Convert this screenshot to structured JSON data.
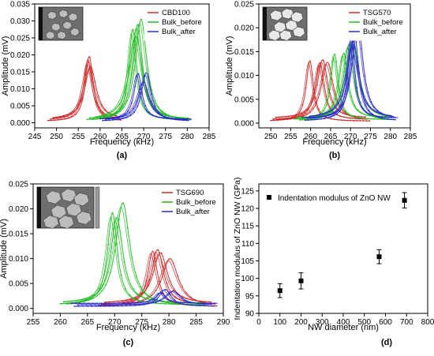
{
  "chart_data": [
    {
      "type": "line",
      "panel_label": "(a)",
      "xlabel": "Frequency (kHz)",
      "ylabel": "Amplitude (mV)",
      "xlim": [
        245,
        285
      ],
      "ylim": [
        -0.0015,
        0.035
      ],
      "xticks": [
        "245",
        "250",
        "255",
        "260",
        "265",
        "270",
        "275",
        "280",
        "285"
      ],
      "yticks": [
        "0.000",
        "0.005",
        "0.010",
        "0.015",
        "0.020",
        "0.025",
        "0.030",
        "0.035"
      ],
      "legend_position": "top-right",
      "inset_image": "SEM micrograph (top view of nanowires)",
      "series": [
        {
          "name": "CBD100",
          "color": "#cc2a2a",
          "peaks": [
            [
              257.5,
              0.0195
            ],
            [
              257.3,
              0.018
            ],
            [
              257.8,
              0.0165
            ]
          ],
          "x_range": [
            248,
            265
          ]
        },
        {
          "name": "Bulk_before",
          "color": "#22bb22",
          "peaks": [
            [
              267.5,
              0.0275
            ],
            [
              268.6,
              0.029
            ],
            [
              269.4,
              0.0305
            ],
            [
              268.2,
              0.0255
            ]
          ],
          "x_range": [
            257,
            281
          ]
        },
        {
          "name": "Bulk_after",
          "color": "#2a2acc",
          "peaks": [
            [
              268.7,
              0.0145
            ],
            [
              270.6,
              0.0148
            ],
            [
              270.0,
              0.012
            ]
          ],
          "x_range": [
            260,
            281
          ]
        }
      ]
    },
    {
      "type": "line",
      "panel_label": "(b)",
      "xlabel": "Frequency (kHz)",
      "ylabel": "Amplitude (mV)",
      "xlim": [
        247,
        285
      ],
      "ylim": [
        -0.001,
        0.025
      ],
      "xticks": [
        "250",
        "255",
        "260",
        "265",
        "270",
        "275",
        "280",
        "285"
      ],
      "yticks": [
        "0.000",
        "0.005",
        "0.010",
        "0.015",
        "0.020",
        "0.025"
      ],
      "legend_position": "top-right",
      "inset_image": "SEM micrograph (faceted nanowire tops)",
      "series": [
        {
          "name": "TSG570",
          "color": "#cc2a2a",
          "peaks": [
            [
              259.8,
              0.0131
            ],
            [
              262.3,
              0.0127
            ],
            [
              263.0,
              0.0133
            ],
            [
              264.2,
              0.0128
            ]
          ],
          "x_range": [
            250,
            275
          ]
        },
        {
          "name": "Bulk_before",
          "color": "#22bb22",
          "peaks": [
            [
              266.0,
              0.0145
            ],
            [
              268.3,
              0.0147
            ],
            [
              269.6,
              0.0165
            ],
            [
              270.6,
              0.0175
            ]
          ],
          "x_range": [
            256,
            281
          ]
        },
        {
          "name": "Bulk_after",
          "color": "#2a2acc",
          "peaks": [
            [
              270.2,
              0.0178
            ],
            [
              271.0,
              0.0185
            ],
            [
              271.8,
              0.0215
            ],
            [
              270.6,
              0.0165
            ]
          ],
          "x_range": [
            258,
            282
          ]
        }
      ]
    },
    {
      "type": "line",
      "panel_label": "(c)",
      "xlabel": "Frequency (kHz)",
      "ylabel": "Amplitude (mV)",
      "xlim": [
        255,
        290
      ],
      "ylim": [
        -0.001,
        0.025
      ],
      "xticks": [
        "255",
        "260",
        "265",
        "270",
        "275",
        "280",
        "285",
        "290"
      ],
      "yticks": [
        "0.000",
        "0.005",
        "0.010",
        "0.015",
        "0.020",
        "0.025"
      ],
      "legend_position": "top-right",
      "inset_image": "SEM micrograph with grayscale colorbar",
      "series": [
        {
          "name": "TSG690",
          "color": "#cc2a2a",
          "peaks": [
            [
              277.0,
              0.0115
            ],
            [
              277.9,
              0.0118
            ],
            [
              278.4,
              0.0112
            ],
            [
              280.2,
              0.01
            ]
          ],
          "x_range": [
            267,
            289
          ]
        },
        {
          "name": "Bulk_before",
          "color": "#22bb22",
          "peaks": [
            [
              269.6,
              0.0192
            ],
            [
              270.4,
              0.0183
            ],
            [
              271.5,
              0.0212
            ]
          ],
          "x_range": [
            260,
            287
          ]
        },
        {
          "name": "Bulk_after",
          "color": "#2a2acc",
          "peaks": [
            [
              278.5,
              0.0032
            ],
            [
              279.3,
              0.0038
            ],
            [
              280.8,
              0.0035
            ]
          ],
          "x_range": [
            262,
            289
          ]
        }
      ]
    },
    {
      "type": "scatter",
      "panel_label": "(d)",
      "xlabel": "NW diameter (nm)",
      "ylabel": "Indentation modulus of ZnO NW (GPa)",
      "xlim": [
        0,
        800
      ],
      "ylim": [
        90,
        127
      ],
      "xticks": [
        "0",
        "100",
        "200",
        "300",
        "400",
        "500",
        "600",
        "700",
        "800"
      ],
      "yticks": [
        "90",
        "95",
        "100",
        "105",
        "110",
        "115",
        "120",
        "125"
      ],
      "legend_position": "top-left",
      "series": [
        {
          "name": "Indentation modulus of ZnO NW",
          "color": "#000000",
          "points": [
            {
              "x": 100,
              "y": 96.5,
              "err": 2.0
            },
            {
              "x": 200,
              "y": 99.3,
              "err": 2.3
            },
            {
              "x": 570,
              "y": 106.2,
              "err": 2.0
            },
            {
              "x": 690,
              "y": 122.3,
              "err": 2.2
            }
          ]
        }
      ]
    }
  ]
}
